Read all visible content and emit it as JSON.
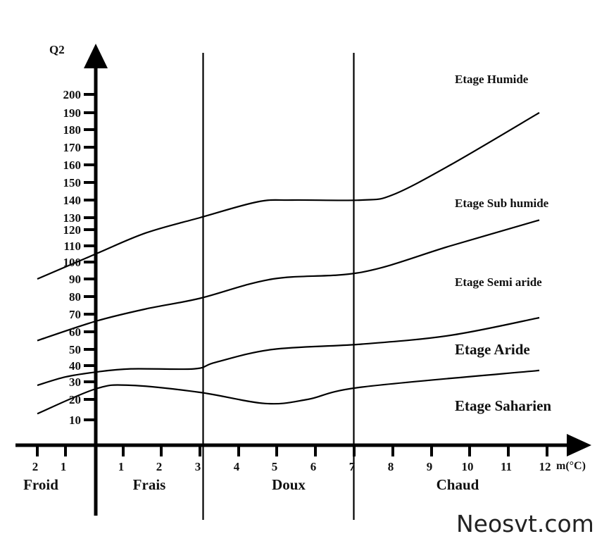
{
  "chart_data": {
    "type": "line",
    "title": "",
    "ylabel": "Q2",
    "xlabel": "m(°C)",
    "yticks": [
      10,
      20,
      30,
      40,
      50,
      60,
      70,
      80,
      90,
      100,
      110,
      120,
      130,
      140,
      150,
      160,
      170,
      180,
      190,
      200
    ],
    "xticks": [
      {
        "v": -2,
        "label": "2"
      },
      {
        "v": -1,
        "label": "1"
      },
      {
        "v": 1,
        "label": "1"
      },
      {
        "v": 2,
        "label": "2"
      },
      {
        "v": 3,
        "label": "3"
      },
      {
        "v": 4,
        "label": "4"
      },
      {
        "v": 5,
        "label": "5"
      },
      {
        "v": 6,
        "label": "6"
      },
      {
        "v": 7,
        "label": "7"
      },
      {
        "v": 8,
        "label": "8"
      },
      {
        "v": 9,
        "label": "9"
      },
      {
        "v": 10,
        "label": "10"
      },
      {
        "v": 11,
        "label": "11"
      },
      {
        "v": 12,
        "label": "12"
      }
    ],
    "zones": [
      {
        "label": "Froid",
        "from": -2.5,
        "to": 0
      },
      {
        "label": "Frais",
        "from": 0,
        "to": 3.3
      },
      {
        "label": "Doux",
        "from": 3.3,
        "to": 7.5
      },
      {
        "label": "Chaud",
        "from": 7.5,
        "to": 13
      }
    ],
    "zone_boundaries": [
      3.3,
      7.5
    ],
    "series": [
      {
        "points": [
          [
            -2,
            90
          ],
          [
            0,
            105
          ],
          [
            1.6,
            118
          ],
          [
            3,
            130
          ],
          [
            4.5,
            139
          ],
          [
            5.4,
            140
          ],
          [
            7.2,
            140
          ],
          [
            8,
            143
          ],
          [
            9.5,
            160
          ],
          [
            11.8,
            190
          ]
        ]
      },
      {
        "points": [
          [
            -2,
            55
          ],
          [
            0,
            66
          ],
          [
            1.6,
            73
          ],
          [
            3,
            79
          ],
          [
            4.9,
            90
          ],
          [
            7.2,
            94
          ],
          [
            9.5,
            110
          ],
          [
            11.8,
            128
          ]
        ]
      },
      {
        "points": [
          [
            -2,
            28
          ],
          [
            -1,
            33
          ],
          [
            0,
            36
          ],
          [
            1.2,
            38
          ],
          [
            2.85,
            38
          ],
          [
            3.4,
            42
          ],
          [
            4.9,
            50
          ],
          [
            7.2,
            53
          ],
          [
            9.5,
            58
          ],
          [
            11.8,
            68
          ]
        ]
      },
      {
        "points": [
          [
            -2,
            13
          ],
          [
            0,
            26
          ],
          [
            1.2,
            28
          ],
          [
            3,
            24
          ],
          [
            4.7,
            18
          ],
          [
            5.8,
            20
          ],
          [
            7.2,
            27
          ],
          [
            11.8,
            37
          ]
        ]
      }
    ],
    "region_labels": [
      "Etage Humide",
      "Etage Sub humide",
      "Etage Semi aride",
      "Etage Aride",
      "Etage Saharien"
    ]
  },
  "watermark": "Neosvt.com"
}
